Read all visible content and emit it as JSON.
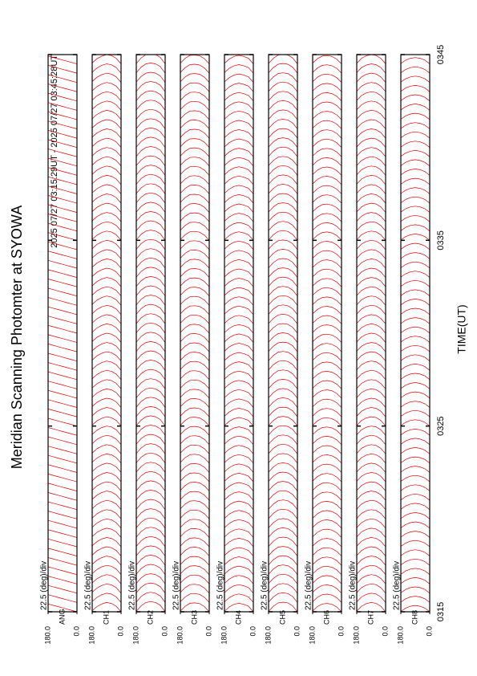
{
  "chart_data": {
    "type": "scan",
    "title": "Meridian Scanning Photomter at SYOWA",
    "subtitle": "2025 07/27 03:15:29UT - 2025 07/27 03:45:28UT",
    "x_label": "TIME(UT)",
    "scale_label": "22.5 (deg)/div",
    "xlim": [
      195,
      225
    ],
    "xticks": [
      {
        "value": 195,
        "label": "0315"
      },
      {
        "value": 205,
        "label": "0325"
      },
      {
        "value": 215,
        "label": "0335"
      },
      {
        "value": 225,
        "label": "0345"
      }
    ],
    "ylim": [
      0,
      180
    ],
    "yticks": [
      {
        "value": 180,
        "label": "180.0"
      },
      {
        "value": 0,
        "label": "0.0"
      }
    ],
    "angles": [
      0,
      30,
      60,
      90,
      120,
      150,
      180
    ],
    "scan_times": [
      195,
      195.5,
      196,
      196.5,
      197,
      197.5,
      198,
      198.5,
      199,
      199.5,
      200,
      200.5,
      201,
      201.5,
      202,
      202.5,
      203,
      203.5,
      204,
      204.5,
      205,
      205.5,
      206,
      206.5,
      207,
      207.5,
      208,
      208.5,
      209,
      209.5,
      210,
      210.5,
      211,
      211.5,
      212,
      212.5,
      213,
      213.5,
      214,
      214.5,
      215,
      215.5,
      216,
      216.5,
      217,
      217.5,
      218,
      218.5,
      219,
      219.5,
      220,
      220.5,
      221,
      221.5,
      222,
      222.5,
      223,
      223.5,
      224,
      224.5,
      225
    ],
    "color": "#e00000",
    "panels": [
      {
        "name": "ANG",
        "profile": [
          0,
          0.07,
          0.14,
          0.21,
          0.28,
          0.35,
          0.42
        ]
      },
      {
        "name": "CH1",
        "profile": [
          0,
          0.3,
          0.45,
          0.5,
          0.42,
          0.28,
          0.05
        ]
      },
      {
        "name": "CH2",
        "profile": [
          0,
          0.35,
          0.5,
          0.55,
          0.5,
          0.32,
          0.02
        ]
      },
      {
        "name": "CH3",
        "profile": [
          0,
          0.28,
          0.44,
          0.48,
          0.46,
          0.3,
          0.04
        ]
      },
      {
        "name": "CH4",
        "profile": [
          0,
          0.3,
          0.4,
          0.46,
          0.4,
          0.26,
          0.03
        ]
      },
      {
        "name": "CH5",
        "profile": [
          0,
          0.32,
          0.48,
          0.52,
          0.48,
          0.3,
          0.02
        ]
      },
      {
        "name": "CH6",
        "profile": [
          0,
          0.26,
          0.4,
          0.45,
          0.42,
          0.28,
          0.04
        ]
      },
      {
        "name": "CH7",
        "profile": [
          0,
          0.3,
          0.46,
          0.5,
          0.44,
          0.3,
          0.03
        ]
      },
      {
        "name": "CH8",
        "profile": [
          0,
          0.2,
          0.3,
          0.34,
          0.3,
          0.2,
          0.02
        ]
      }
    ]
  }
}
